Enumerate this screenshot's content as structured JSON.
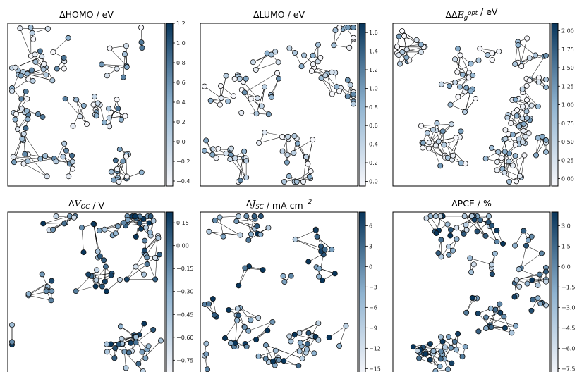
{
  "chart_data": [
    {
      "type": "network",
      "title_parts": [
        {
          "t": "ΔHOMO / eV"
        }
      ],
      "colorbar": {
        "ticks": [
          "1.2",
          "1.0",
          "0.8",
          "0.6",
          "0.4",
          "0.2",
          "0.0",
          "−0.2",
          "−0.4"
        ],
        "vmin": -0.45,
        "vmax": 1.2
      },
      "node_value_mean": 0.1,
      "axes": {
        "x_ticks": "none",
        "y_ticks": "none"
      }
    },
    {
      "type": "network",
      "title_parts": [
        {
          "t": "ΔLUMO / eV"
        }
      ],
      "colorbar": {
        "ticks": [
          "1.6",
          "1.4",
          "1.2",
          "1.0",
          "0.8",
          "0.6",
          "0.4",
          "0.2",
          "0.0"
        ],
        "vmin": -0.05,
        "vmax": 1.7
      },
      "node_value_mean": 0.35,
      "axes": {
        "x_ticks": "none",
        "y_ticks": "none"
      }
    },
    {
      "type": "network",
      "title_parts": [
        {
          "t": "ΔΔ"
        },
        {
          "t": "E",
          "style": "it"
        },
        {
          "t": "g",
          "style": "sub"
        },
        {
          "t": "opt",
          "style": "sup"
        },
        {
          "t": "  / eV"
        }
      ],
      "colorbar": {
        "ticks": [
          "2.00",
          "1.75",
          "1.50",
          "1.25",
          "1.00",
          "0.75",
          "0.50",
          "0.25",
          "0.00"
        ],
        "vmin": -0.1,
        "vmax": 2.1
      },
      "node_value_mean": 0.3,
      "axes": {
        "x_ticks": "none",
        "y_ticks": "none"
      }
    },
    {
      "type": "network",
      "title_parts": [
        {
          "t": "Δ"
        },
        {
          "t": "V",
          "style": "it"
        },
        {
          "t": "OC",
          "style": "sub"
        },
        {
          "t": " / V"
        }
      ],
      "colorbar": {
        "ticks": [
          "0.15",
          "0.00",
          "−0.15",
          "−0.30",
          "−0.45",
          "−0.60",
          "−0.75"
        ],
        "vmin": -0.85,
        "vmax": 0.22
      },
      "node_value_mean": -0.2,
      "axes": {
        "x_ticks": "none",
        "y_ticks": "none"
      }
    },
    {
      "type": "network",
      "title_parts": [
        {
          "t": "Δ"
        },
        {
          "t": "J",
          "style": "it"
        },
        {
          "t": "SC",
          "style": "sub"
        },
        {
          "t": " / mA cm"
        },
        {
          "t": "−2",
          "style": "sup"
        }
      ],
      "colorbar": {
        "ticks": [
          "6",
          "3",
          "0",
          "−3",
          "−6",
          "−9",
          "−12",
          "−15"
        ],
        "vmin": -16,
        "vmax": 8
      },
      "node_value_mean": 0,
      "axes": {
        "x_ticks": "none",
        "y_ticks": "none"
      }
    },
    {
      "type": "network",
      "title_parts": [
        {
          "t": "ΔPCE / %"
        }
      ],
      "colorbar": {
        "ticks": [
          "3.0",
          "1.5",
          "0.0",
          "−1.5",
          "−3.0",
          "−4.5",
          "−6.0",
          "−7.5"
        ],
        "vmin": -8,
        "vmax": 4
      },
      "node_value_mean": -1.0,
      "axes": {
        "x_ticks": "none",
        "y_ticks": "none"
      }
    }
  ],
  "colors": {
    "cmap_low": "#f7f7fb",
    "cmap_mid": "#8fb3d0",
    "cmap_high": "#08355a",
    "frame": "#000000",
    "edge": "#000000"
  }
}
